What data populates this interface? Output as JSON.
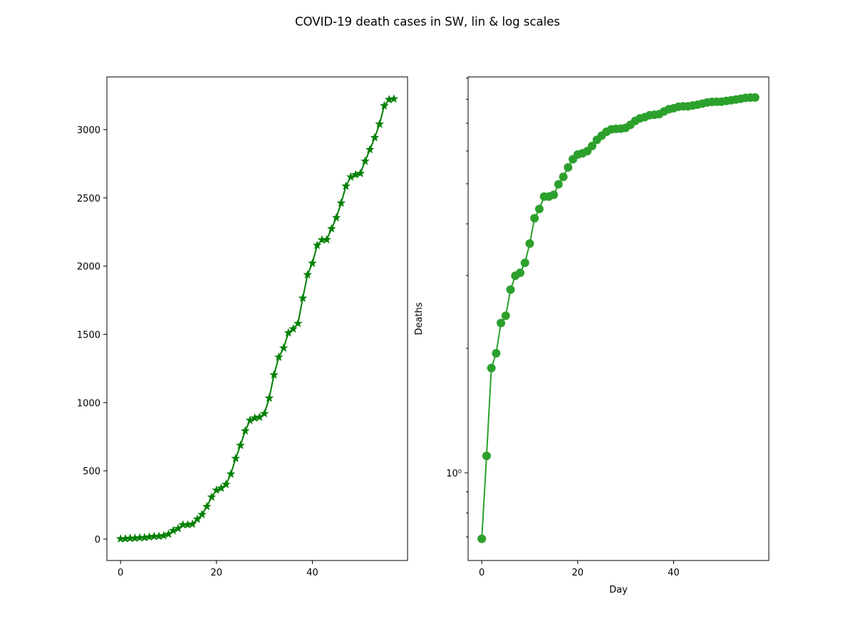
{
  "title": "COVID-19 death cases in SW, lin & log scales",
  "chart_data": [
    {
      "type": "line",
      "log_y": false,
      "color": "#008000",
      "marker": "star",
      "x": [
        0,
        1,
        2,
        3,
        4,
        5,
        6,
        7,
        8,
        9,
        10,
        11,
        12,
        13,
        14,
        15,
        16,
        17,
        18,
        19,
        20,
        21,
        22,
        23,
        24,
        25,
        26,
        27,
        28,
        29,
        30,
        31,
        32,
        33,
        34,
        35,
        36,
        37,
        38,
        39,
        40,
        41,
        42,
        43,
        44,
        45,
        46,
        47,
        48,
        49,
        50,
        51,
        52,
        53,
        54,
        55,
        56,
        57
      ],
      "values": [
        2,
        3,
        6,
        7,
        10,
        11,
        16,
        20,
        21,
        25,
        36,
        62,
        77,
        105,
        105,
        110,
        146,
        180,
        239,
        308,
        358,
        373,
        401,
        477,
        591,
        687,
        793,
        870,
        887,
        893,
        919,
        1033,
        1203,
        1333,
        1400,
        1511,
        1540,
        1580,
        1765,
        1937,
        2021,
        2152,
        2192,
        2194,
        2274,
        2355,
        2462,
        2586,
        2653,
        2669,
        2679,
        2769,
        2854,
        2941,
        3040,
        3175,
        3220,
        3225
      ],
      "xlim": [
        -2.85,
        59.85
      ],
      "xticks": [
        0,
        20,
        40
      ],
      "ylim": [
        -157,
        3386
      ],
      "yticks": [
        0,
        500,
        1000,
        1500,
        2000,
        2500,
        3000
      ]
    },
    {
      "type": "line",
      "log_y": true,
      "color": "#2ca02c",
      "marker": "circle",
      "x_label": "Day",
      "y_label": "Deaths",
      "x": [
        0,
        1,
        2,
        3,
        4,
        5,
        6,
        7,
        8,
        9,
        10,
        11,
        12,
        13,
        14,
        15,
        16,
        17,
        18,
        19,
        20,
        21,
        22,
        23,
        24,
        25,
        26,
        27,
        28,
        29,
        30,
        31,
        32,
        33,
        34,
        35,
        36,
        37,
        38,
        39,
        40,
        41,
        42,
        43,
        44,
        45,
        46,
        47,
        48,
        49,
        50,
        51,
        52,
        53,
        54,
        55,
        56,
        57
      ],
      "values": [
        0.693,
        1.099,
        1.792,
        1.946,
        2.303,
        2.398,
        2.773,
        2.996,
        3.045,
        3.219,
        3.584,
        4.127,
        4.344,
        4.654,
        4.654,
        4.7,
        4.984,
        5.193,
        5.476,
        5.73,
        5.881,
        5.922,
        5.994,
        6.168,
        6.382,
        6.532,
        6.676,
        6.768,
        6.788,
        6.795,
        6.823,
        6.94,
        7.093,
        7.195,
        7.244,
        7.321,
        7.34,
        7.365,
        7.476,
        7.569,
        7.611,
        7.674,
        7.693,
        7.693,
        7.729,
        7.764,
        7.809,
        7.858,
        7.884,
        7.889,
        7.893,
        7.926,
        7.956,
        7.987,
        8.02,
        8.063,
        8.077,
        8.079
      ],
      "xlim": [
        -2.85,
        59.85
      ],
      "xticks": [
        0,
        20,
        40
      ],
      "ylim": [
        0.614,
        9.06
      ],
      "yticks": [
        {
          "value": 1,
          "label": "10⁰"
        }
      ],
      "yminor_ticks": [
        0.7,
        0.8,
        0.9,
        2,
        3,
        4,
        5,
        6,
        7,
        8,
        9
      ]
    }
  ]
}
